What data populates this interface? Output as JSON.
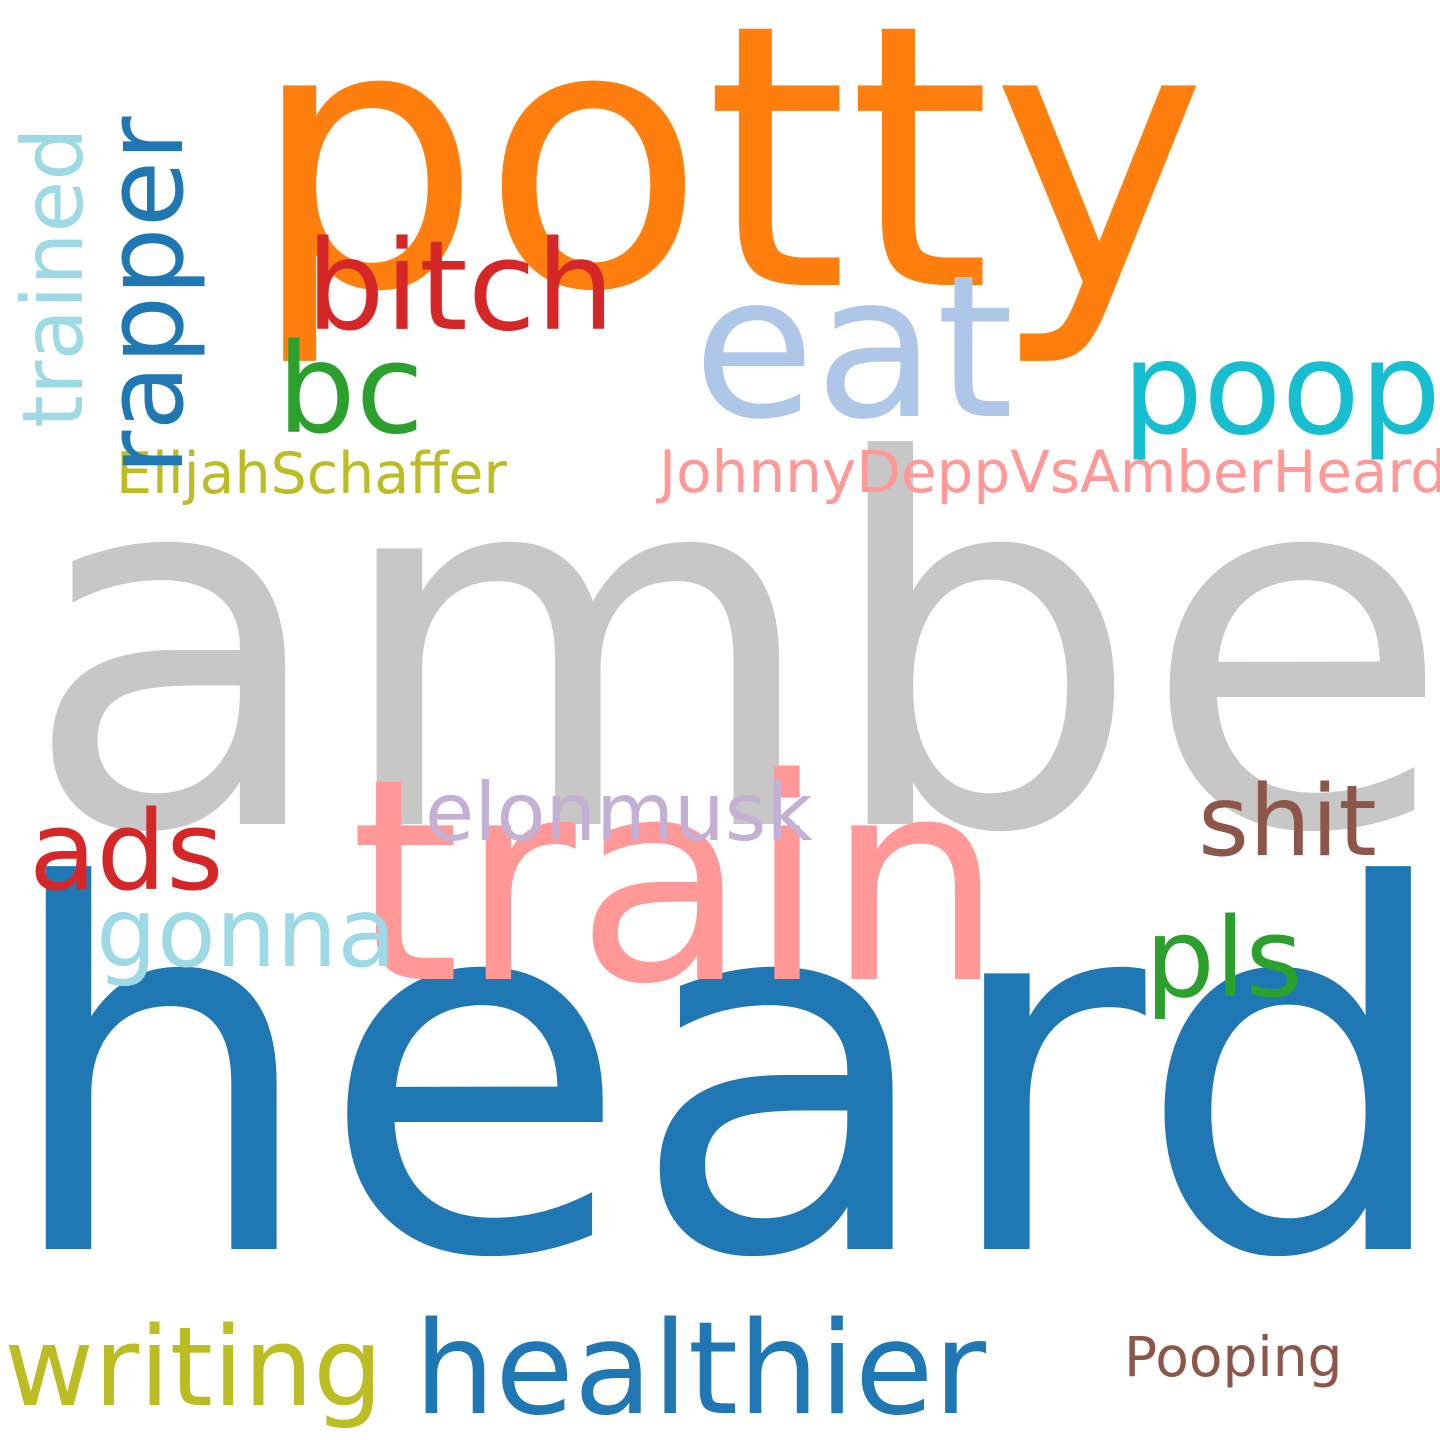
{
  "words": {
    "amber": {
      "text": "amber",
      "color": "#c7c7c7"
    },
    "heard": {
      "text": "heard",
      "color": "#1f77b4"
    },
    "potty": {
      "text": "potty",
      "color": "#ff7f0e"
    },
    "train": {
      "text": "train",
      "color": "#ff9896"
    },
    "eat": {
      "text": "eat",
      "color": "#aec7e8"
    },
    "poop": {
      "text": "poop",
      "color": "#17becf"
    },
    "bitch": {
      "text": "bitch",
      "color": "#d62728"
    },
    "bc": {
      "text": "bc",
      "color": "#2ca02c"
    },
    "healthier": {
      "text": "healthier",
      "color": "#1f77b4"
    },
    "writing": {
      "text": "writing",
      "color": "#bcbd22"
    },
    "ads": {
      "text": "ads",
      "color": "#d62728"
    },
    "shit": {
      "text": "shit",
      "color": "#8c564b"
    },
    "pls": {
      "text": "pls",
      "color": "#2ca02c"
    },
    "gonna": {
      "text": "gonna",
      "color": "#9edae5"
    },
    "elonmusk": {
      "text": "elonmusk",
      "color": "#c5b0d5"
    },
    "jdvah": {
      "text": "JohnnyDeppVsAmberHeard",
      "color": "#ff9896"
    },
    "elijah": {
      "text": "ElijahSchaffer",
      "color": "#bcbd22"
    },
    "pooping": {
      "text": "Pooping",
      "color": "#8c564b"
    },
    "rapper": {
      "text": "rapper",
      "color": "#1f77b4"
    },
    "trained": {
      "text": "trained",
      "color": "#9edae5"
    }
  }
}
